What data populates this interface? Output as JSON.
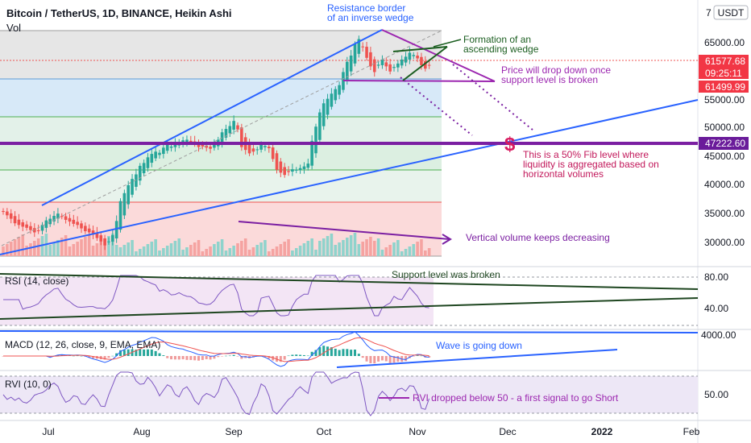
{
  "header": {
    "symbol_line": "Bitcoin / TetherUS, 1D, BINANCE, Heikin Ashi",
    "vol_label": "Vol",
    "currency_button": "USDT"
  },
  "price_axis": {
    "ticks": [
      "65000.00",
      "55000.00",
      "50000.00",
      "45000.00",
      "40000.00",
      "35000.00",
      "30000.00"
    ],
    "top_partial": "7",
    "badges": [
      {
        "text": "61577.68",
        "bg": "#f23645"
      },
      {
        "text": "09:25:11",
        "bg": "#f23645"
      },
      {
        "text": "61499.99",
        "bg": "#f23645"
      },
      {
        "text": "47222.60",
        "bg": "#6a1b9a"
      }
    ]
  },
  "time_axis": {
    "labels": [
      "Jul",
      "Aug",
      "Sep",
      "Oct",
      "Nov",
      "Dec",
      "2022",
      "Feb"
    ]
  },
  "annotations": {
    "resistance": [
      "Resistance border",
      "of an inverse wedge"
    ],
    "wedge": [
      "Formation of an",
      "ascending wedge"
    ],
    "drop": [
      "Price will drop down once",
      "support level is broken"
    ],
    "fib": [
      "This is a 50% Fib level where",
      "liquidity is aggregated based on",
      "horizontal volumes"
    ],
    "fib_symbol": "$",
    "volume": "Vertical volume keeps decreasing",
    "support_broken": "Support level was broken",
    "wave": "Wave is going down",
    "rvi": "RVI dropped below 50 - a first signal to go Short"
  },
  "indicators": {
    "rsi": {
      "label": "RSI (14, close)",
      "ticks": [
        "80.00",
        "40.00"
      ]
    },
    "macd": {
      "label": "MACD (12, 26, close, 9, EMA, EMA)",
      "ticks": [
        "4000.00"
      ]
    },
    "rvi": {
      "label": "RVI (10, 0)",
      "ticks": [
        "50.00"
      ]
    }
  },
  "colors": {
    "bull": "#26a69a",
    "bear": "#ef5350",
    "trend_blue": "#2962ff",
    "fib_purple": "#7b1fa2",
    "wedge_green": "#1b5e20",
    "dark_line": "#1e4620"
  },
  "chart_data": {
    "type": "candlestick",
    "title": "Bitcoin / TetherUS, 1D, BINANCE, Heikin Ashi",
    "ylim": [
      27000,
      71000
    ],
    "y_ticks": [
      30000,
      35000,
      40000,
      45000,
      50000,
      55000,
      65000
    ],
    "x_labels": [
      "Jul",
      "Aug",
      "Sep",
      "Oct",
      "Nov",
      "Dec",
      "2022",
      "Feb"
    ],
    "close_series": [
      35800,
      35200,
      34600,
      33800,
      33500,
      33200,
      33000,
      32600,
      32200,
      32400,
      33500,
      34300,
      34600,
      35100,
      35500,
      35000,
      34400,
      34100,
      33700,
      33500,
      32900,
      32400,
      32200,
      31800,
      31200,
      30600,
      29900,
      30600,
      31700,
      34200,
      37700,
      39100,
      40500,
      41600,
      42400,
      43900,
      44400,
      45400,
      46000,
      46400,
      46200,
      47100,
      47600,
      47300,
      47800,
      48100,
      48400,
      48500,
      48100,
      47900,
      47200,
      47300,
      47100,
      46900,
      47600,
      48500,
      49800,
      50400,
      50900,
      51800,
      50300,
      47200,
      46700,
      46100,
      46400,
      46800,
      47600,
      47400,
      47000,
      45100,
      43200,
      42700,
      42300,
      42800,
      43300,
      43200,
      43500,
      43800,
      44300,
      48300,
      50800,
      53300,
      54900,
      55700,
      56600,
      57400,
      58100,
      60400,
      62200,
      63300,
      65300,
      66200,
      64800,
      62900,
      61400,
      60400,
      61700,
      62600,
      61400,
      60500,
      61300,
      61900,
      62600,
      63100,
      63800,
      63400,
      62800,
      61600,
      61000,
      61577
    ],
    "annotated_levels": {
      "fib_50_level": 47222.6,
      "last_price": 61577.68,
      "support_level": 61499.99
    },
    "indicator_ticks": {
      "rsi": [
        80,
        40
      ],
      "macd": [
        4000
      ],
      "rvi": [
        50
      ]
    }
  }
}
